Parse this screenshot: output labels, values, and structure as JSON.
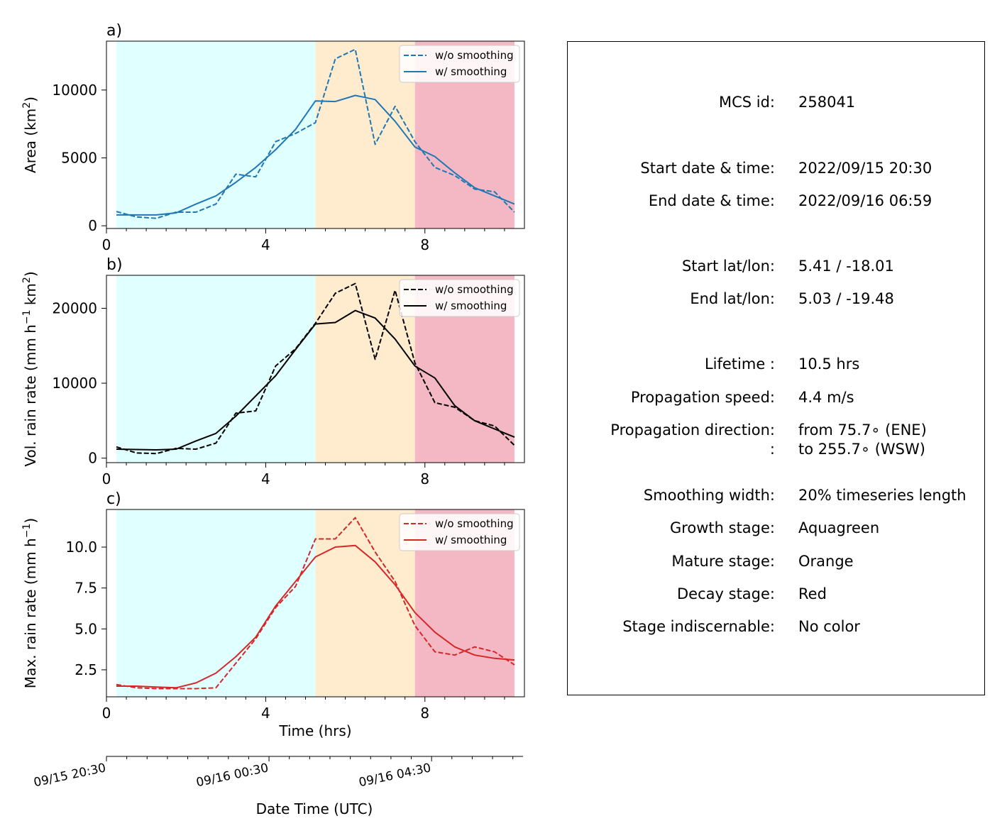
{
  "chart_data": [
    {
      "panel_label": "a)",
      "type": "line",
      "ylabel": "Area  (km²)",
      "ylabel_parts": {
        "pre": "Area  (km",
        "sup": "2",
        "post": ")"
      },
      "xlim": [
        0,
        10.5
      ],
      "ylim": [
        -200,
        13600
      ],
      "xticks": [
        0,
        4,
        8
      ],
      "xtick_labels": [
        "0",
        "4",
        "8"
      ],
      "yticks": [
        0,
        5000,
        10000
      ],
      "ytick_labels": [
        "0",
        "5000",
        "10000"
      ],
      "color": "#1f77b4",
      "legend": [
        "w/o smoothing",
        "w/ smoothing"
      ],
      "legend_position": "top-right",
      "stages": [
        {
          "name": "Growth",
          "from": 0.25,
          "to": 5.25,
          "color": "#e0ffff"
        },
        {
          "name": "Mature",
          "from": 5.25,
          "to": 7.75,
          "color": "#ffebcd"
        },
        {
          "name": "Decay",
          "from": 7.75,
          "to": 10.25,
          "color": "#f4b8c5"
        }
      ],
      "series": [
        {
          "name": "w/o smoothing",
          "style": "dashed",
          "x": [
            0.25,
            0.75,
            1.25,
            1.75,
            2.25,
            2.75,
            3.25,
            3.75,
            4.25,
            4.75,
            5.25,
            5.75,
            6.25,
            6.75,
            7.25,
            7.75,
            8.25,
            8.75,
            9.25,
            9.75,
            10.25
          ],
          "y": [
            1050,
            650,
            550,
            1000,
            1000,
            1600,
            3800,
            3600,
            6200,
            6800,
            7600,
            12300,
            13000,
            6000,
            8800,
            6200,
            4300,
            3700,
            2700,
            2500,
            1000
          ]
        },
        {
          "name": "w/ smoothing",
          "style": "solid",
          "x": [
            0.25,
            1.25,
            1.75,
            2.25,
            2.75,
            3.25,
            3.75,
            4.25,
            4.75,
            5.25,
            5.75,
            6.25,
            6.75,
            7.25,
            7.75,
            8.25,
            8.75,
            9.25,
            9.75,
            10.25
          ],
          "y": [
            800,
            800,
            950,
            1600,
            2200,
            3200,
            4300,
            5600,
            7100,
            9200,
            9150,
            9600,
            9300,
            7700,
            5800,
            5100,
            3900,
            2800,
            2200,
            1600
          ]
        }
      ]
    },
    {
      "panel_label": "b)",
      "type": "line",
      "ylabel": "Vol. rain rate (mm h⁻¹ km²)",
      "ylabel_parts": {
        "pre": "Vol. rain rate (mm h",
        "sup": "−1",
        "mid": " km",
        "sup2": "2",
        "post": ")"
      },
      "xlim": [
        0,
        10.5
      ],
      "ylim": [
        -600,
        24400
      ],
      "xticks": [
        0,
        4,
        8
      ],
      "xtick_labels": [
        "0",
        "4",
        "8"
      ],
      "yticks": [
        0,
        10000,
        20000
      ],
      "ytick_labels": [
        "0",
        "10000",
        "20000"
      ],
      "color": "#000000",
      "legend": [
        "w/o smoothing",
        "w/ smoothing"
      ],
      "legend_position": "top-right",
      "stages": [
        {
          "name": "Growth",
          "from": 0.25,
          "to": 5.25,
          "color": "#e0ffff"
        },
        {
          "name": "Mature",
          "from": 5.25,
          "to": 7.75,
          "color": "#ffebcd"
        },
        {
          "name": "Decay",
          "from": 7.75,
          "to": 10.25,
          "color": "#f4b8c5"
        }
      ],
      "series": [
        {
          "name": "w/o smoothing",
          "style": "dashed",
          "x": [
            0.25,
            0.75,
            1.25,
            1.75,
            2.25,
            2.75,
            3.25,
            3.75,
            4.25,
            4.75,
            5.25,
            5.75,
            6.25,
            6.75,
            7.25,
            7.75,
            8.25,
            8.75,
            9.25,
            9.75,
            10.25
          ],
          "y": [
            1500,
            700,
            600,
            1300,
            1200,
            2000,
            6000,
            6300,
            12300,
            14600,
            18000,
            22000,
            23300,
            13200,
            22400,
            12700,
            7400,
            6800,
            5000,
            4300,
            1700
          ]
        },
        {
          "name": "w/ smoothing",
          "style": "solid",
          "x": [
            0.25,
            1.25,
            1.75,
            2.25,
            2.75,
            3.25,
            3.75,
            4.25,
            4.75,
            5.25,
            5.75,
            6.25,
            6.75,
            7.25,
            7.75,
            8.25,
            8.75,
            9.25,
            9.75,
            10.25
          ],
          "y": [
            1200,
            1100,
            1200,
            2300,
            3300,
            5600,
            8300,
            11000,
            14500,
            17900,
            18100,
            19700,
            18700,
            15900,
            12300,
            10700,
            7000,
            5000,
            3900,
            2800
          ]
        }
      ]
    },
    {
      "panel_label": "c)",
      "type": "line",
      "ylabel": "Max. rain rate  (mm h⁻¹)",
      "ylabel_parts": {
        "pre": "Max. rain rate  (mm h",
        "sup": "−1",
        "post": ")"
      },
      "xlabel": "Time (hrs)",
      "xlim": [
        0,
        10.5
      ],
      "ylim": [
        0.85,
        12.3
      ],
      "xticks": [
        0,
        4,
        8
      ],
      "xtick_labels": [
        "0",
        "4",
        "8"
      ],
      "yticks": [
        2.5,
        5.0,
        7.5,
        10.0
      ],
      "ytick_labels": [
        "2.5",
        "5.0",
        "7.5",
        "10.0"
      ],
      "color": "#d62728",
      "legend": [
        "w/o smoothing",
        "w/ smoothing"
      ],
      "legend_position": "top-right",
      "stages": [
        {
          "name": "Growth",
          "from": 0.25,
          "to": 5.25,
          "color": "#e0ffff"
        },
        {
          "name": "Mature",
          "from": 5.25,
          "to": 7.75,
          "color": "#ffebcd"
        },
        {
          "name": "Decay",
          "from": 7.75,
          "to": 10.25,
          "color": "#f4b8c5"
        }
      ],
      "series": [
        {
          "name": "w/o smoothing",
          "style": "dashed",
          "x": [
            0.25,
            0.75,
            1.25,
            1.75,
            2.25,
            2.75,
            3.25,
            3.75,
            4.25,
            4.75,
            5.25,
            5.75,
            6.25,
            6.75,
            7.25,
            7.75,
            8.25,
            8.75,
            9.25,
            9.75,
            10.25
          ],
          "y": [
            1.6,
            1.4,
            1.35,
            1.35,
            1.35,
            1.4,
            2.9,
            4.4,
            6.3,
            7.6,
            10.5,
            10.5,
            11.8,
            9.7,
            7.9,
            5.2,
            3.6,
            3.4,
            3.9,
            3.6,
            2.8
          ]
        },
        {
          "name": "w/ smoothing",
          "style": "solid",
          "x": [
            0.25,
            0.75,
            1.25,
            1.75,
            2.25,
            2.75,
            3.25,
            3.75,
            4.25,
            4.75,
            5.25,
            5.75,
            6.25,
            6.75,
            7.25,
            7.75,
            8.25,
            8.75,
            9.25,
            9.75,
            10.25
          ],
          "y": [
            1.5,
            1.5,
            1.45,
            1.4,
            1.7,
            2.3,
            3.3,
            4.5,
            6.4,
            7.9,
            9.4,
            10.0,
            10.1,
            9.1,
            7.7,
            6.0,
            4.8,
            3.9,
            3.4,
            3.2,
            3.1
          ]
        }
      ]
    }
  ],
  "secondary_axis": {
    "xlabel": "Date Time (UTC)",
    "tick_hours": [
      0,
      4,
      8
    ],
    "tick_labels": [
      "09/15 20:30",
      "09/16 00:30",
      "09/16 04:30"
    ]
  },
  "info": [
    {
      "label": "MCS id:",
      "value": "258041"
    },
    {
      "label": "Start date & time:",
      "value": "2022/09/15 20:30"
    },
    {
      "label": "End date & time:",
      "value": "2022/09/16 06:59"
    },
    {
      "label": "Start lat/lon:",
      "value": "5.41 / -18.01"
    },
    {
      "label": "End lat/lon:",
      "value": "5.03 / -19.48"
    },
    {
      "label": "Lifetime :",
      "value": "10.5 hrs"
    },
    {
      "label": "Propagation speed:",
      "value": "4.4 m/s"
    },
    {
      "label": "Propagation direction:",
      "value": "from  75.7∘ (ENE)"
    },
    {
      "label": ":",
      "value": "to   255.7∘ (WSW)"
    },
    {
      "label": "Smoothing width:",
      "value": "20% timeseries length"
    },
    {
      "label": "Growth stage:",
      "value": "Aquagreen"
    },
    {
      "label": "Mature stage:",
      "value": "Orange"
    },
    {
      "label": "Decay stage:",
      "value": "Red"
    },
    {
      "label": "Stage indiscernable:",
      "value": "No color"
    }
  ]
}
